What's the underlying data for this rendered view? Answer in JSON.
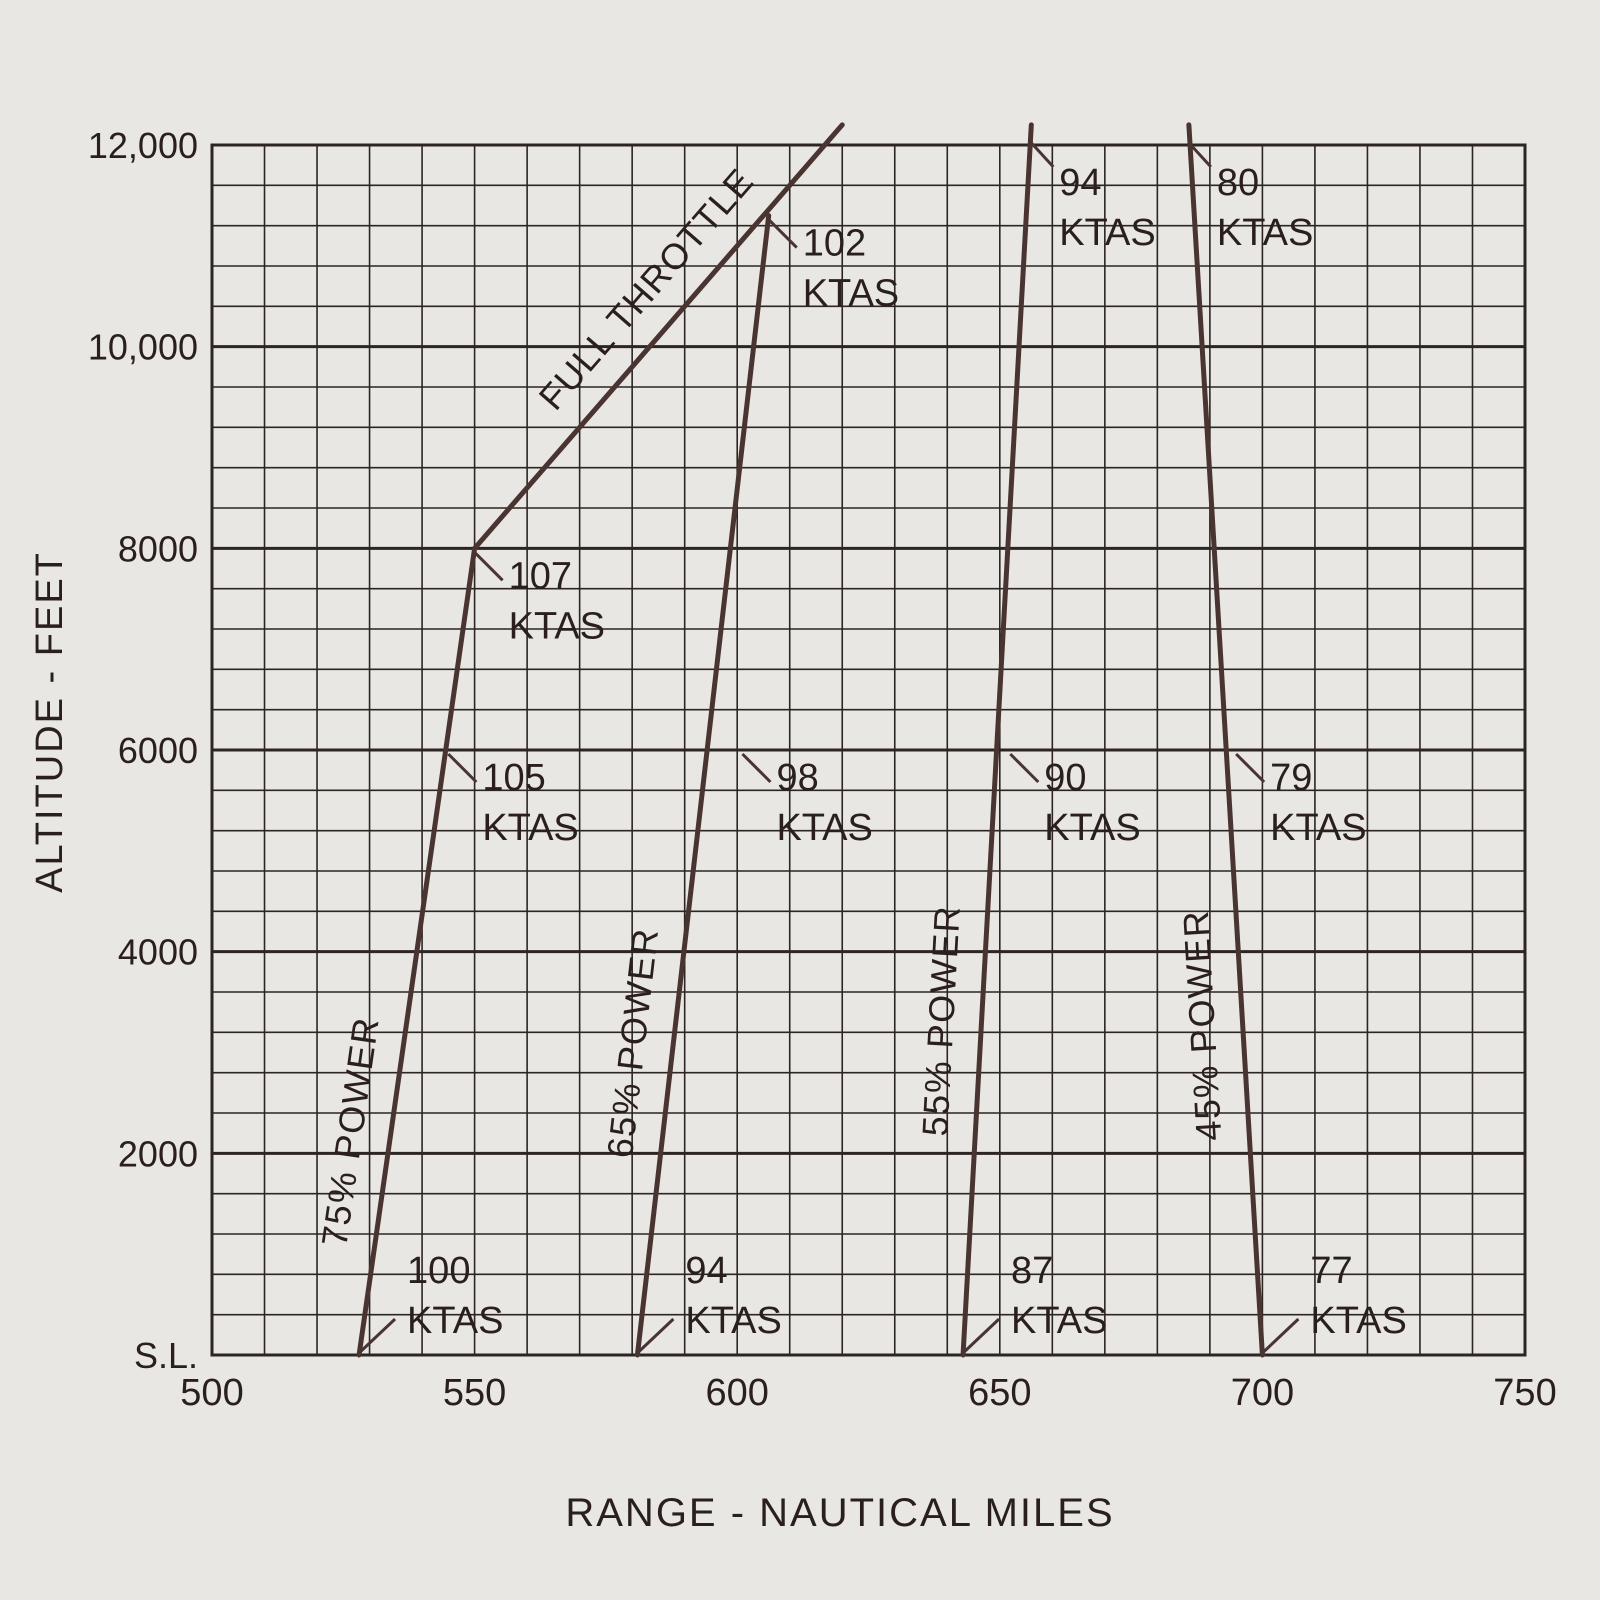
{
  "chart_data": {
    "type": "line",
    "xlabel": "RANGE - NAUTICAL MILES",
    "ylabel": "ALTITUDE - FEET",
    "xlim": [
      500,
      750
    ],
    "ylim": [
      0,
      12000
    ],
    "x_ticks": [
      "500",
      "550",
      "600",
      "650",
      "700",
      "750"
    ],
    "y_ticks": [
      "S.L.",
      "2000",
      "4000",
      "6000",
      "8000",
      "10,000",
      "12,000"
    ],
    "grid": true,
    "colors": {
      "line": "#4a3431",
      "grid": "#2c2523",
      "paper": "#e8e7e3",
      "text": "#2a1f1c"
    },
    "series": [
      {
        "name": "75% POWER",
        "points": [
          [
            528,
            0
          ],
          [
            550,
            8000
          ]
        ]
      },
      {
        "name": "65% POWER",
        "points": [
          [
            581,
            0
          ],
          [
            606,
            11300
          ]
        ]
      },
      {
        "name": "55% POWER",
        "points": [
          [
            643,
            0
          ],
          [
            656,
            12200
          ]
        ]
      },
      {
        "name": "45% POWER",
        "points": [
          [
            686,
            12200
          ],
          [
            700,
            0
          ]
        ]
      },
      {
        "name": "FULL THROTTLE",
        "points": [
          [
            550,
            8000
          ],
          [
            620,
            12200
          ]
        ]
      }
    ],
    "annotations": [
      {
        "speed": "100",
        "unit": "KTAS",
        "x": 528,
        "y": 0
      },
      {
        "speed": "105",
        "unit": "KTAS",
        "x": 545,
        "y": 6000
      },
      {
        "speed": "107",
        "unit": "KTAS",
        "x": 550,
        "y": 8000
      },
      {
        "speed": "94",
        "unit": "KTAS",
        "x": 581,
        "y": 0
      },
      {
        "speed": "98",
        "unit": "KTAS",
        "x": 601,
        "y": 6000
      },
      {
        "speed": "102",
        "unit": "KTAS",
        "x": 606,
        "y": 11300
      },
      {
        "speed": "87",
        "unit": "KTAS",
        "x": 643,
        "y": 0
      },
      {
        "speed": "90",
        "unit": "KTAS",
        "x": 652,
        "y": 6000
      },
      {
        "speed": "94",
        "unit": "KTAS",
        "x": 656,
        "y": 12200
      },
      {
        "speed": "77",
        "unit": "KTAS",
        "x": 700,
        "y": 0
      },
      {
        "speed": "79",
        "unit": "KTAS",
        "x": 695,
        "y": 6000
      },
      {
        "speed": "80",
        "unit": "KTAS",
        "x": 686,
        "y": 12200
      }
    ]
  }
}
